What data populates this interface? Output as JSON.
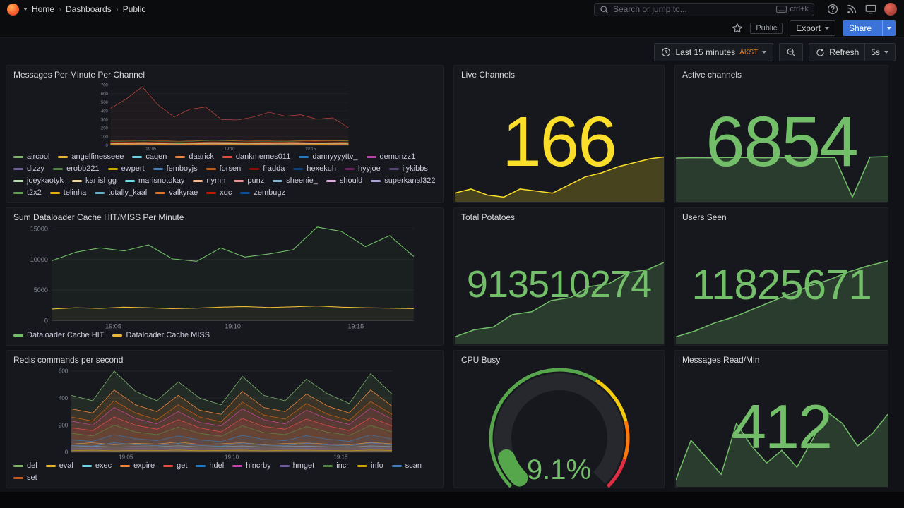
{
  "nav": {
    "breadcrumb": [
      "Home",
      "Dashboards",
      "Public"
    ],
    "separator": "›",
    "search_placeholder": "Search or jump to...",
    "search_shortcut": "ctrl+k"
  },
  "toolbar": {
    "tag": "Public",
    "export_label": "Export",
    "share_label": "Share"
  },
  "timebar": {
    "range": "Last 15 minutes",
    "timezone": "AKST",
    "refresh_label": "Refresh",
    "interval": "5s"
  },
  "icons": {
    "logo": "grafana-flame",
    "search": "magnifier",
    "shortcut": "keyboard",
    "help": "question-circle",
    "news": "rss",
    "display": "monitor",
    "profile": "avatar",
    "star": "star-outline",
    "clock": "clock",
    "zoom_out": "magnifier-minus",
    "refresh": "circular-arrow",
    "caret": "chevron-down"
  },
  "colors": {
    "accent_blue": "#3b73d9",
    "stat_green": "#73BF69",
    "stat_yellow": "#FADE2A",
    "timezone_orange": "#eb7b18"
  },
  "panels": {
    "messages": {
      "title": "Messages Per Minute Per Channel"
    },
    "live_channels": {
      "title": "Live Channels",
      "value": "166"
    },
    "active_channels": {
      "title": "Active channels",
      "value": "6854"
    },
    "dataloader": {
      "title": "Sum Dataloader Cache HIT/MISS Per Minute"
    },
    "total_potatoes": {
      "title": "Total Potatoes",
      "value": "913510274"
    },
    "users_seen": {
      "title": "Users Seen",
      "value": "11825671"
    },
    "redis": {
      "title": "Redis commands per second"
    },
    "cpu_busy": {
      "title": "CPU Busy",
      "value": "9.1%"
    },
    "messages_read": {
      "title": "Messages Read/Min",
      "value": "412"
    }
  },
  "chart_data": [
    {
      "id": "messages",
      "type": "line",
      "title": "Messages Per Minute Per Channel",
      "ylim": [
        0,
        700
      ],
      "yticks": [
        0,
        100,
        200,
        300,
        400,
        500,
        600,
        700
      ],
      "xticks": [
        {
          "label": "19:05",
          "pos": 0.17
        },
        {
          "label": "19:10",
          "pos": 0.5
        },
        {
          "label": "19:15",
          "pos": 0.84
        }
      ],
      "fill_opacity": 0.04,
      "line_width": 1,
      "series": [
        {
          "name": "aircool",
          "color": "#7EB26D",
          "values": [
            30,
            34,
            28,
            36,
            32,
            38,
            30,
            34
          ]
        },
        {
          "name": "angelfinesseee",
          "color": "#EAB839",
          "values": [
            12,
            15,
            10,
            14,
            12,
            16,
            11,
            13
          ]
        },
        {
          "name": "caqen",
          "color": "#6ED0E0",
          "values": [
            8,
            10,
            7,
            9,
            8,
            11,
            9,
            8
          ]
        },
        {
          "name": "daarick",
          "color": "#EF843C",
          "values": [
            20,
            24,
            18,
            26,
            22,
            20,
            24,
            19
          ]
        },
        {
          "name": "dankmemes011",
          "color": "#E24D42",
          "values": [
            430,
            540,
            680,
            470,
            330,
            420,
            445,
            300,
            295,
            330,
            385,
            340,
            355,
            305,
            320,
            205
          ]
        },
        {
          "name": "dannyyyyttv_",
          "color": "#1F78C1",
          "values": [
            6,
            8,
            5,
            7,
            6,
            9,
            7,
            6
          ]
        },
        {
          "name": "demonzz1",
          "color": "#BA43A9",
          "values": [
            14,
            12,
            16,
            13,
            15,
            12,
            14,
            13
          ]
        },
        {
          "name": "dizzy",
          "color": "#705DA0",
          "values": [
            4,
            6,
            5,
            4,
            6,
            5,
            4,
            5
          ]
        },
        {
          "name": "erobb221",
          "color": "#508642",
          "values": [
            45,
            52,
            40,
            58,
            48,
            44,
            55,
            50
          ]
        },
        {
          "name": "ewpert",
          "color": "#CCA300",
          "values": [
            10,
            12,
            9,
            11,
            10,
            13,
            10,
            11
          ]
        },
        {
          "name": "femboyjs",
          "color": "#447EBC",
          "values": [
            7,
            9,
            6,
            8,
            7,
            9,
            8,
            7
          ]
        },
        {
          "name": "forsen",
          "color": "#C15C17",
          "values": [
            55,
            60,
            48,
            62,
            50,
            58,
            52,
            56
          ]
        },
        {
          "name": "fradda",
          "color": "#890F02",
          "values": [
            16,
            18,
            14,
            17,
            15,
            19,
            16,
            17
          ]
        },
        {
          "name": "hexekuh",
          "color": "#0A437C",
          "values": [
            5,
            7,
            4,
            6,
            5,
            7,
            6,
            5
          ]
        },
        {
          "name": "hyyjoe",
          "color": "#6D1F62",
          "values": [
            9,
            11,
            8,
            10,
            9,
            12,
            10,
            9
          ]
        },
        {
          "name": "ilykibbs",
          "color": "#584477",
          "values": [
            3,
            5,
            4,
            3,
            5,
            4,
            3,
            4
          ]
        },
        {
          "name": "joeykaotyk",
          "color": "#B7DBAB",
          "values": [
            22,
            26,
            20,
            24,
            21,
            25,
            23,
            22
          ]
        },
        {
          "name": "karlishgg",
          "color": "#F4D598",
          "values": [
            11,
            13,
            10,
            12,
            11,
            14,
            12,
            11
          ]
        },
        {
          "name": "marisnotokay",
          "color": "#70DBED",
          "values": [
            6,
            8,
            7,
            6,
            8,
            7,
            6,
            7
          ]
        },
        {
          "name": "nymn",
          "color": "#F9BA8F",
          "values": [
            18,
            21,
            16,
            20,
            17,
            22,
            19,
            18
          ]
        },
        {
          "name": "punz",
          "color": "#F29191",
          "values": [
            8,
            10,
            7,
            9,
            8,
            10,
            9,
            8
          ]
        },
        {
          "name": "sheenie_",
          "color": "#82B5D8",
          "values": [
            5,
            6,
            4,
            6,
            5,
            7,
            5,
            6
          ]
        },
        {
          "name": "should",
          "color": "#E5A8E2",
          "values": [
            13,
            15,
            12,
            14,
            13,
            16,
            14,
            13
          ]
        },
        {
          "name": "superkanal322",
          "color": "#AEA2E0",
          "values": [
            7,
            8,
            6,
            8,
            7,
            9,
            7,
            8
          ]
        },
        {
          "name": "t2x2",
          "color": "#629E51",
          "values": [
            25,
            29,
            22,
            28,
            24,
            30,
            26,
            25
          ]
        },
        {
          "name": "telinha",
          "color": "#E5AC0E",
          "values": [
            10,
            12,
            9,
            11,
            10,
            12,
            11,
            10
          ]
        },
        {
          "name": "totally_kaal",
          "color": "#64B0C8",
          "values": [
            4,
            5,
            3,
            5,
            4,
            6,
            4,
            5
          ]
        },
        {
          "name": "valkyrae",
          "color": "#E0752D",
          "values": [
            15,
            17,
            13,
            16,
            14,
            18,
            15,
            16
          ]
        },
        {
          "name": "xqc",
          "color": "#BF1B00",
          "values": [
            35,
            40,
            32,
            42,
            36,
            38,
            44,
            37
          ]
        },
        {
          "name": "zembugz",
          "color": "#0A50A1",
          "values": [
            6,
            7,
            5,
            7,
            6,
            8,
            6,
            7
          ]
        }
      ]
    },
    {
      "id": "dataloader",
      "type": "line",
      "title": "Sum Dataloader Cache HIT/MISS Per Minute",
      "ylim": [
        0,
        15000
      ],
      "yticks": [
        0,
        5000,
        10000,
        15000
      ],
      "xticks": [
        {
          "label": "19:05",
          "pos": 0.17
        },
        {
          "label": "19:10",
          "pos": 0.5
        },
        {
          "label": "19:15",
          "pos": 0.84
        }
      ],
      "fill_opacity": 0.05,
      "line_width": 1.2,
      "series": [
        {
          "name": "Dataloader Cache HIT",
          "color": "#73BF69",
          "values": [
            9800,
            11200,
            11900,
            11400,
            12400,
            10100,
            9700,
            11900,
            10400,
            10900,
            11600,
            15300,
            14600,
            12100,
            13900,
            10500
          ]
        },
        {
          "name": "Dataloader Cache MISS",
          "color": "#EAB839",
          "values": [
            1900,
            2100,
            2000,
            2200,
            2100,
            1950,
            2050,
            2200,
            2300,
            2150,
            2250,
            2400,
            2200,
            2100,
            2050,
            1950
          ]
        }
      ]
    },
    {
      "id": "redis",
      "type": "line",
      "title": "Redis commands per second",
      "ylim": [
        0,
        600
      ],
      "yticks": [
        0,
        200,
        400,
        600
      ],
      "xticks": [
        {
          "label": "19:05",
          "pos": 0.17
        },
        {
          "label": "19:10",
          "pos": 0.5
        },
        {
          "label": "19:15",
          "pos": 0.84
        }
      ],
      "fill_opacity": 0.12,
      "line_width": 1,
      "series": [
        {
          "name": "del",
          "color": "#7EB26D",
          "values": [
            420,
            380,
            600,
            450,
            380,
            520,
            400,
            350,
            560,
            420,
            380,
            540,
            430,
            360,
            580,
            430
          ]
        },
        {
          "name": "eval",
          "color": "#EAB839",
          "values": [
            60,
            70,
            55,
            65,
            60,
            75,
            58,
            62,
            70,
            56,
            64,
            68,
            60,
            55,
            72,
            62
          ]
        },
        {
          "name": "exec",
          "color": "#6ED0E0",
          "values": [
            40,
            45,
            38,
            42,
            40,
            48,
            39,
            41,
            46,
            38,
            43,
            45,
            40,
            37,
            47,
            42
          ]
        },
        {
          "name": "expire",
          "color": "#EF843C",
          "values": [
            320,
            290,
            460,
            350,
            300,
            420,
            310,
            280,
            450,
            330,
            300,
            430,
            340,
            290,
            460,
            340
          ]
        },
        {
          "name": "get",
          "color": "#E24D42",
          "values": [
            180,
            160,
            260,
            200,
            170,
            240,
            180,
            150,
            250,
            190,
            170,
            245,
            195,
            160,
            255,
            195
          ]
        },
        {
          "name": "hdel",
          "color": "#1F78C1",
          "values": [
            90,
            80,
            130,
            100,
            85,
            120,
            90,
            78,
            125,
            95,
            85,
            122,
            96,
            80,
            128,
            98
          ]
        },
        {
          "name": "hincrby",
          "color": "#BA43A9",
          "values": [
            230,
            200,
            330,
            250,
            210,
            300,
            220,
            195,
            320,
            240,
            210,
            310,
            245,
            205,
            325,
            245
          ]
        },
        {
          "name": "hmget",
          "color": "#705DA0",
          "values": [
            25,
            30,
            22,
            28,
            25,
            32,
            24,
            27,
            30,
            23,
            28,
            30,
            25,
            22,
            31,
            27
          ]
        },
        {
          "name": "incr",
          "color": "#508642",
          "values": [
            140,
            120,
            200,
            150,
            130,
            185,
            140,
            118,
            195,
            145,
            130,
            190,
            148,
            124,
            198,
            150
          ]
        },
        {
          "name": "info",
          "color": "#CCA300",
          "values": [
            12,
            15,
            10,
            14,
            12,
            16,
            11,
            13,
            15,
            10,
            14,
            15,
            12,
            10,
            16,
            13
          ]
        },
        {
          "name": "scan",
          "color": "#447EBC",
          "values": [
            50,
            45,
            70,
            55,
            48,
            65,
            50,
            44,
            68,
            52,
            48,
            66,
            53,
            46,
            69,
            54
          ]
        },
        {
          "name": "set",
          "color": "#C15C17",
          "values": [
            260,
            230,
            380,
            290,
            240,
            350,
            260,
            225,
            370,
            275,
            245,
            360,
            280,
            235,
            375,
            280
          ]
        }
      ]
    },
    {
      "id": "live_spark",
      "type": "area",
      "title": "Live Channels sparkline",
      "color": "#FADE2A",
      "values": [
        148,
        150,
        147,
        146,
        150,
        149,
        148,
        152,
        156,
        158,
        161,
        163,
        165,
        166
      ]
    },
    {
      "id": "active_spark",
      "type": "area",
      "title": "Active channels sparkline",
      "color": "#73BF69",
      "values": [
        6800,
        6815,
        6810,
        6825,
        6820,
        6812,
        6818,
        6810,
        6826,
        6820,
        5400,
        6840,
        6854
      ]
    },
    {
      "id": "potatoes_spark",
      "type": "area",
      "title": "Total Potatoes sparkline",
      "color": "#73BF69",
      "values": [
        910800000,
        911050000,
        911150000,
        911600000,
        911700000,
        912100000,
        912200000,
        912600000,
        912700000,
        913100000,
        913200000,
        913510274
      ]
    },
    {
      "id": "users_spark",
      "type": "area",
      "title": "Users Seen sparkline",
      "color": "#73BF69",
      "values": [
        11818000,
        11818600,
        11819400,
        11820000,
        11820800,
        11821600,
        11822400,
        11823200,
        11823800,
        11824600,
        11825200,
        11825671
      ]
    },
    {
      "id": "read_spark",
      "type": "area",
      "title": "Messages Read/Min sparkline",
      "color": "#73BF69",
      "values": [
        180,
        320,
        260,
        200,
        380,
        300,
        240,
        285,
        225,
        320,
        420,
        380,
        300,
        345,
        412
      ]
    },
    {
      "id": "cpu_gauge",
      "type": "gauge",
      "title": "CPU Busy",
      "value": 9.1,
      "min": 0,
      "max": 100,
      "unit": "%",
      "value_color": "#56A64B",
      "thresholds": [
        {
          "to": 0.62,
          "color": "#56A64B"
        },
        {
          "to": 0.78,
          "color": "#F2CC0C"
        },
        {
          "to": 0.9,
          "color": "#FF780A"
        },
        {
          "to": 1,
          "color": "#E02F44"
        }
      ]
    }
  ]
}
